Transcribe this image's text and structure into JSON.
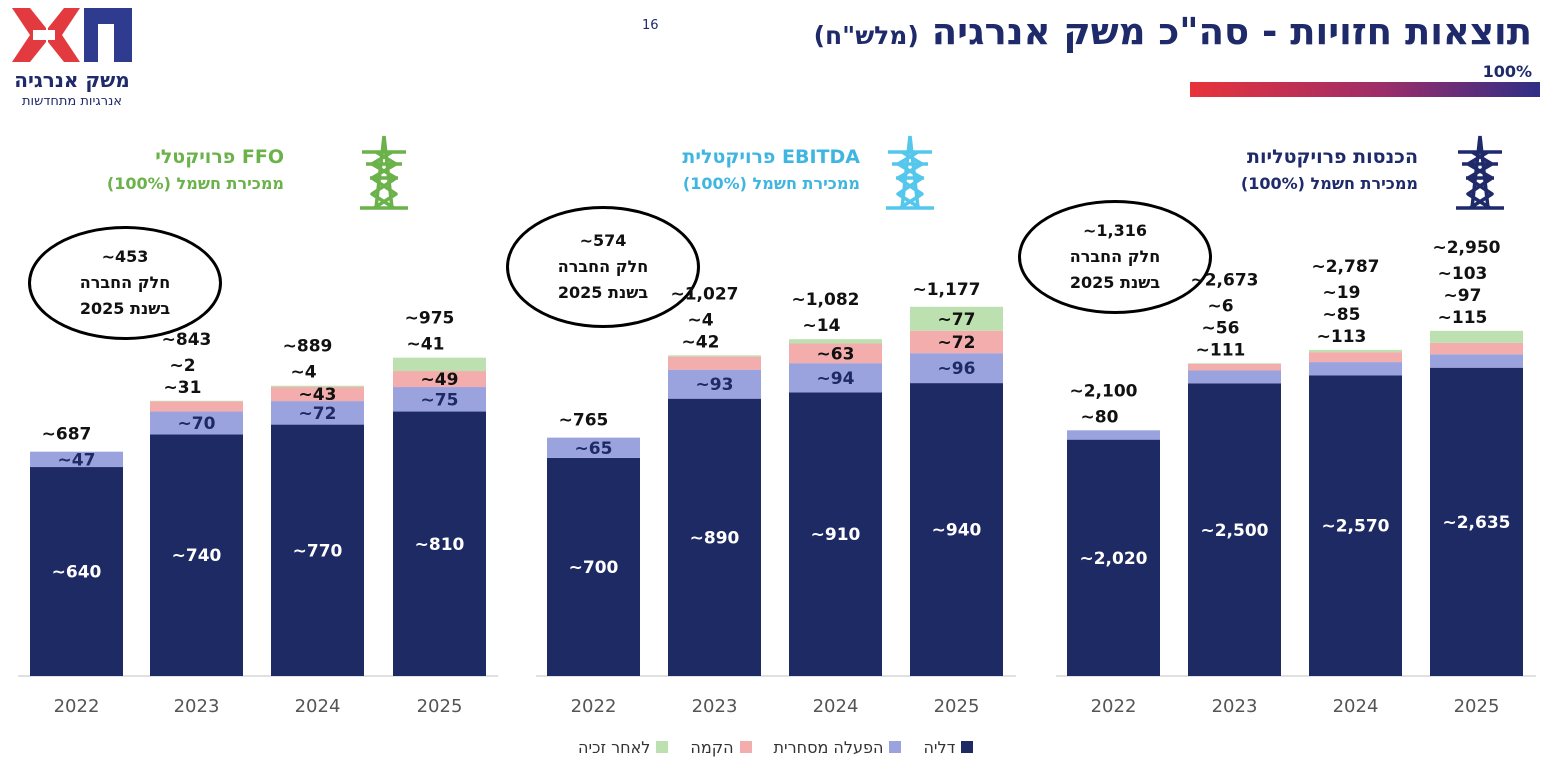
{
  "logo": {
    "brand": "משק אנרגיה",
    "tagline": "אנרגיות מתחדשות"
  },
  "header": {
    "title": "תוצאות חזויות - סה\"כ משק אנרגיה",
    "unit": "(מלש\"ח)",
    "footnote": "16",
    "percent": "100%"
  },
  "colors": {
    "dalia": "#1d2a63",
    "commercial": "#9aa3de",
    "construction": "#f3adad",
    "post_win": "#bde0b0",
    "ffo": "#6bb24a",
    "ebitda": "#3fb6e2",
    "revenue": "#1f2a6b"
  },
  "legend": [
    "דליה",
    "הפעלה מסחרית",
    "הקמה",
    "לאחר זכיה"
  ],
  "panels": [
    {
      "heading": "FFO פרויקטלי",
      "subheading": "ממכירת חשמל (100%)",
      "icon": "power-tower-icon",
      "bubble": [
        "453~",
        "חלק החברה",
        "בשנת 2025"
      ]
    },
    {
      "heading": "EBITDA פרויקטלית",
      "subheading": "ממכירת חשמל (100%)",
      "icon": "power-tower-icon",
      "bubble": [
        "574~",
        "חלק החברה",
        "בשנת 2025"
      ]
    },
    {
      "heading": "הכנסות פרויקטליות",
      "subheading": "ממכירת חשמל (100%)",
      "icon": "power-tower-icon",
      "bubble": [
        "1,316~",
        "חלק החברה",
        "בשנת 2025"
      ]
    }
  ],
  "chart_data": [
    {
      "type": "bar",
      "title": "FFO פרויקטלי",
      "stacked": true,
      "categories": [
        "2022",
        "2023",
        "2024",
        "2025"
      ],
      "series": [
        {
          "name": "דליה",
          "values": [
            640,
            740,
            770,
            810
          ],
          "labels": [
            "~640",
            "~740",
            "~770",
            "~810"
          ]
        },
        {
          "name": "הפעלה מסחרית",
          "values": [
            47,
            70,
            72,
            75
          ],
          "labels": [
            "~47",
            "~70",
            "~72",
            "~75"
          ]
        },
        {
          "name": "הקמה",
          "values": [
            0,
            31,
            43,
            49
          ],
          "labels": [
            "",
            "~31",
            "~43",
            "~49"
          ]
        },
        {
          "name": "לאחר זכיה",
          "values": [
            0,
            2,
            4,
            41
          ],
          "labels": [
            "",
            "~2",
            "~4",
            "~41"
          ]
        }
      ],
      "totals": [
        "~687",
        "~843",
        "~889",
        "~975"
      ]
    },
    {
      "type": "bar",
      "title": "EBITDA פרויקטלית",
      "stacked": true,
      "categories": [
        "2022",
        "2023",
        "2024",
        "2025"
      ],
      "series": [
        {
          "name": "דליה",
          "values": [
            700,
            890,
            910,
            940
          ],
          "labels": [
            "~700",
            "~890",
            "~910",
            "~940"
          ]
        },
        {
          "name": "הפעלה מסחרית",
          "values": [
            65,
            93,
            94,
            96
          ],
          "labels": [
            "~65",
            "~93",
            "~94",
            "~96"
          ]
        },
        {
          "name": "הקמה",
          "values": [
            0,
            42,
            63,
            72
          ],
          "labels": [
            "",
            "~42",
            "~63",
            "~72"
          ]
        },
        {
          "name": "לאחר זכיה",
          "values": [
            0,
            4,
            14,
            77
          ],
          "labels": [
            "",
            "~4",
            "~14",
            "~77"
          ]
        }
      ],
      "totals": [
        "~765",
        "~1,027",
        "~1,082",
        "~1,177"
      ]
    },
    {
      "type": "bar",
      "title": "הכנסות פרויקטליות",
      "stacked": true,
      "categories": [
        "2022",
        "2023",
        "2024",
        "2025"
      ],
      "series": [
        {
          "name": "דליה",
          "values": [
            2020,
            2500,
            2570,
            2635
          ],
          "labels": [
            "~2,020",
            "~2,500",
            "~2,570",
            "~2,635"
          ]
        },
        {
          "name": "הפעלה מסחרית",
          "values": [
            80,
            111,
            113,
            115
          ],
          "labels": [
            "~80",
            "~111",
            "~113",
            "~115"
          ]
        },
        {
          "name": "הקמה",
          "values": [
            0,
            56,
            85,
            97
          ],
          "labels": [
            "",
            "~56",
            "~85",
            "~97"
          ]
        },
        {
          "name": "לאחר זכיה",
          "values": [
            0,
            6,
            19,
            103
          ],
          "labels": [
            "",
            "~6",
            "~19",
            "~103"
          ]
        }
      ],
      "totals": [
        "~2,100",
        "~2,673",
        "~2,787",
        "~2,950"
      ]
    }
  ]
}
